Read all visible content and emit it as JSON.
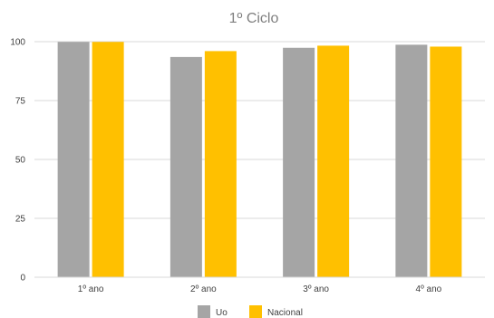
{
  "chart_data": {
    "type": "bar",
    "title": "1º  Ciclo",
    "categories": [
      "1º ano",
      "2º ano",
      "3º ano",
      "4º ano"
    ],
    "series": [
      {
        "name": "Uo",
        "color": "#a5a5a5",
        "values": [
          99.9,
          93.5,
          97.4,
          98.7
        ]
      },
      {
        "name": "Nacional",
        "color": "#ffc000",
        "values": [
          99.9,
          96.0,
          98.3,
          97.9
        ]
      }
    ],
    "ylim": [
      0,
      100
    ],
    "yticks": [
      0,
      25,
      50,
      75,
      100
    ],
    "grid": true,
    "legend": "bottom"
  }
}
